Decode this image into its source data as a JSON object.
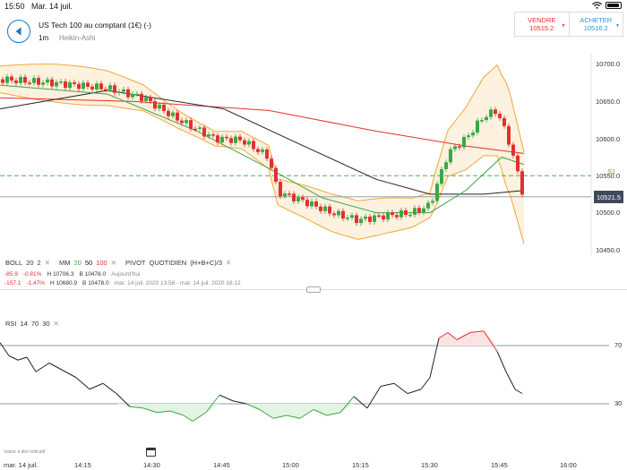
{
  "status": {
    "time": "15:50",
    "date": "Mar. 14 juil."
  },
  "header": {
    "instrument": "US Tech 100 au comptant (1€) (-)",
    "timeframe": "1m",
    "chart_type": "Heikin-Ashi"
  },
  "trade": {
    "sell_label": "VENDRE",
    "sell_price": "10515.2",
    "buy_label": "ACHETER",
    "buy_price": "10516.2"
  },
  "price_axis": {
    "ticks": [
      "10700.0",
      "10650.0",
      "10600.0",
      "10550.0",
      "10500.0",
      "10450.0"
    ],
    "current": "10521.5",
    "s1_label": "S1"
  },
  "legend": {
    "boll": "BOLL",
    "boll_p1": "20",
    "boll_p2": "2",
    "mm": "MM",
    "mm_20": "20",
    "mm_50": "50",
    "mm_100": "100",
    "pivot": "PIVOT",
    "pivot_type": "QUOTIDIEN",
    "pivot_formula": "(H+B+C)/3",
    "x": "✕"
  },
  "stats": {
    "row1": {
      "change": "-85.9",
      "pct": "-0.81%",
      "high": "H 10706.3",
      "low": "B 10478.0",
      "period": "Aujourd'hui"
    },
    "row2": {
      "change": "-157.1",
      "pct": "-1.47%",
      "high": "H 10680.9",
      "low": "B 10478.0",
      "period": "mar. 14 juil. 2020 13:58 - mar. 14 juil. 2020 16:12"
    }
  },
  "rsi": {
    "label": "RSI",
    "p1": "14",
    "p2": "70",
    "p3": "30",
    "level_high": "70",
    "level_low": "30"
  },
  "footer": {
    "note": "Valeur à titre indicatif"
  },
  "xaxis": {
    "date": "mar. 14 juil.",
    "ticks": [
      "14:15",
      "14:30",
      "14:45",
      "15:00",
      "15:15",
      "15:30",
      "15:45",
      "16:00"
    ]
  },
  "colors": {
    "bull": "#3aa844",
    "bear": "#e2312d",
    "boll": "#f2a833",
    "mm50": "#222222",
    "mm100": "#e2312d",
    "pivot": "#49b44a",
    "accent": "#1e73c8"
  }
}
